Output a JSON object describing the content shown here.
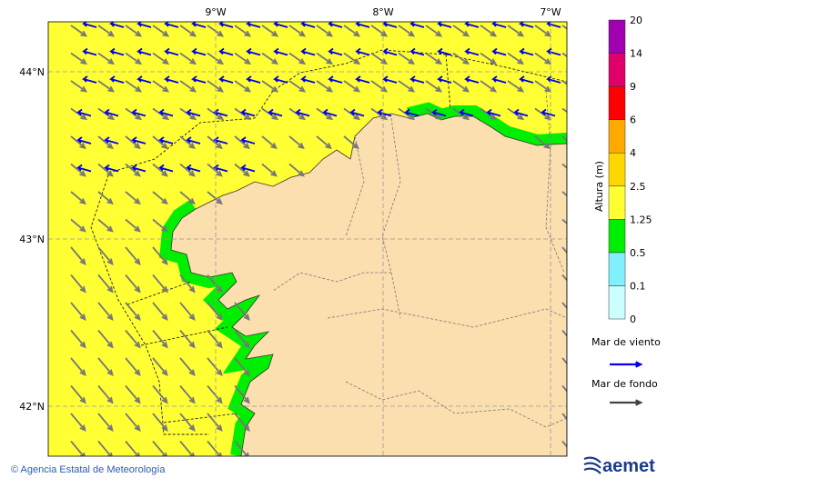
{
  "map": {
    "lon_labels": [
      "9°W",
      "8°W",
      "7°W"
    ],
    "lat_labels": [
      "44°N",
      "43°N",
      "42°N"
    ]
  },
  "colorbar": {
    "title": "Altura (m)",
    "levels": [
      0,
      0.1,
      0.5,
      1.25,
      2.5,
      4,
      6,
      9,
      14,
      20
    ],
    "colors": [
      "#ccffff",
      "#80f0ff",
      "#00ee00",
      "#ffff33",
      "#ffd700",
      "#ffaa00",
      "#ff0000",
      "#e0006a",
      "#a000b0"
    ]
  },
  "legend": [
    {
      "label": "Mar de viento",
      "color": "#0000ee"
    },
    {
      "label": "Mar de fondo",
      "color": "#444444"
    }
  ],
  "footer": {
    "credit": "© Agencia Estatal de Meteorología",
    "logo": "aemet"
  }
}
